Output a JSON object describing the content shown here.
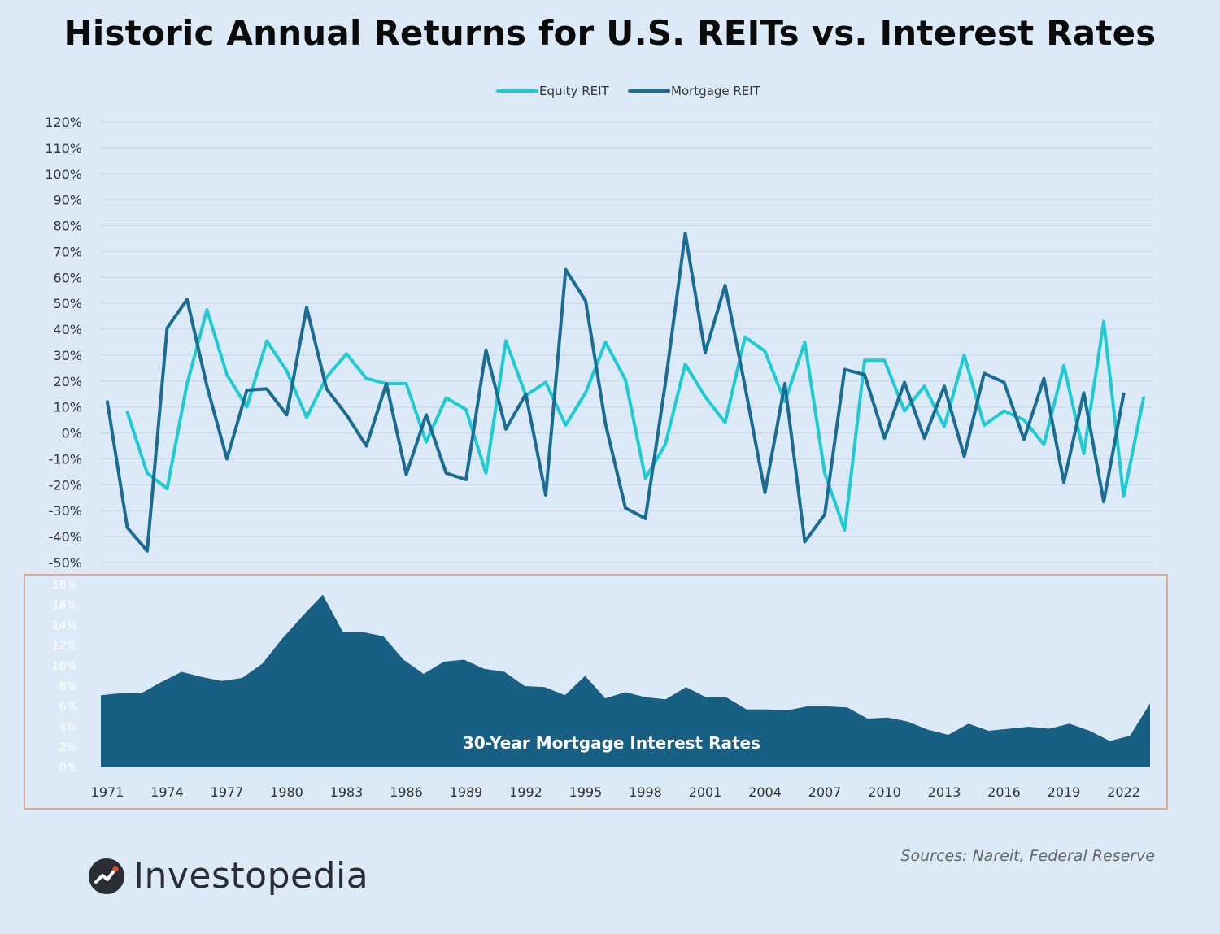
{
  "title": "Historic Annual Returns for U.S. REITs vs. Interest Rates",
  "source_note": "Sources: Nareit, Federal Reserve",
  "brand": {
    "name": "Investopedia",
    "icon": "investopedia-logo-icon"
  },
  "colors": {
    "equity": "#1ecbd3",
    "mortgage": "#1b6c93",
    "area": "#176084",
    "grid": "#c6d5e5",
    "box": "#e07c60"
  },
  "chart_data": [
    {
      "type": "line",
      "title": "",
      "xlabel": "",
      "ylabel": "",
      "ylim": [
        -50,
        120
      ],
      "y_ticks": [
        "120%",
        "110%",
        "100%",
        "90%",
        "80%",
        "70%",
        "60%",
        "50%",
        "40%",
        "30%",
        "20%",
        "10%",
        "0%",
        "-10%",
        "-20%",
        "-30%",
        "-40%",
        "-50%"
      ],
      "grid": true,
      "legend_position": "top-center",
      "series": [
        {
          "name": "Equity REIT",
          "x": [
            1972,
            1973,
            1974,
            1975,
            1976,
            1977,
            1978,
            1979,
            1980,
            1981,
            1982,
            1983,
            1984,
            1985,
            1986,
            1987,
            1988,
            1989,
            1990,
            1991,
            1992,
            1993,
            1994,
            1995,
            1996,
            1997,
            1998,
            1999,
            2000,
            2001,
            2002,
            2003,
            2004,
            2005,
            2006,
            2007,
            2008,
            2009,
            2010,
            2011,
            2012,
            2013,
            2014,
            2015,
            2016,
            2017,
            2018,
            2019,
            2020,
            2021,
            2022,
            2023
          ],
          "values": [
            8,
            -15.5,
            -21.5,
            19,
            47.5,
            22.5,
            10,
            35.5,
            24,
            6,
            21.5,
            30.5,
            21,
            19,
            19,
            -3.5,
            13.5,
            9,
            -15.5,
            35.5,
            14.5,
            19.5,
            3,
            15.5,
            35,
            20.5,
            -17.5,
            -4.5,
            26.5,
            14,
            4,
            37,
            31.5,
            12,
            35,
            -15.5,
            -37.5,
            28,
            28,
            8.5,
            18,
            2.5,
            30,
            3,
            8.5,
            5,
            -4.5,
            26,
            -8,
            43,
            -24.5,
            13.5
          ]
        },
        {
          "name": "Mortgage REIT",
          "x": [
            1971,
            1972,
            1973,
            1974,
            1975,
            1976,
            1977,
            1978,
            1979,
            1980,
            1981,
            1982,
            1983,
            1984,
            1985,
            1986,
            1987,
            1988,
            1989,
            1990,
            1991,
            1992,
            1993,
            1994,
            1995,
            1996,
            1997,
            1998,
            1999,
            2000,
            2001,
            2002,
            2003,
            2004,
            2005,
            2006,
            2007,
            2008,
            2009,
            2010,
            2011,
            2012,
            2013,
            2014,
            2015,
            2016,
            2017,
            2018,
            2019,
            2020,
            2021,
            2022
          ],
          "values": [
            12,
            -36.5,
            -45.5,
            40.5,
            51.5,
            18,
            -10,
            16.5,
            17,
            7,
            48.5,
            17,
            7,
            -5,
            19,
            -16,
            7,
            -15.5,
            -18,
            32,
            1.5,
            15,
            -24,
            63,
            51,
            3.5,
            -29,
            -33,
            19,
            77,
            31,
            57,
            18,
            -23,
            19,
            -42,
            -31.5,
            24.5,
            22.5,
            -2,
            19.5,
            -2,
            18,
            -9,
            23,
            19.5,
            -2.5,
            21,
            -19,
            15.5,
            -26.5,
            15
          ]
        }
      ]
    },
    {
      "type": "area",
      "title": "30-Year Mortgage Interest Rates",
      "xlabel": "",
      "ylabel": "",
      "ylim": [
        0,
        18
      ],
      "y_ticks": [
        "18%",
        "16%",
        "14%",
        "12%",
        "10%",
        "8%",
        "6%",
        "4%",
        "2%",
        "0%"
      ],
      "x_ticks": [
        "1971",
        "1974",
        "1977",
        "1980",
        "1983",
        "1986",
        "1989",
        "1992",
        "1995",
        "1998",
        "2001",
        "2004",
        "2007",
        "2010",
        "2013",
        "2016",
        "2019",
        "2022"
      ],
      "grid": false,
      "series": [
        {
          "name": "",
          "x": [
            1971,
            1972,
            1973,
            1974,
            1975,
            1976,
            1977,
            1978,
            1979,
            1980,
            1981,
            1982,
            1983,
            1984,
            1985,
            1986,
            1987,
            1988,
            1989,
            1990,
            1991,
            1992,
            1993,
            1994,
            1995,
            1996,
            1997,
            1998,
            1999,
            2000,
            2001,
            2002,
            2003,
            2004,
            2005,
            2006,
            2007,
            2008,
            2009,
            2010,
            2011,
            2012,
            2013,
            2014,
            2015,
            2016,
            2017,
            2018,
            2019,
            2020,
            2021,
            2022,
            2023
          ],
          "values": [
            7.1,
            7.3,
            7.3,
            8.4,
            9.4,
            8.9,
            8.5,
            8.8,
            10.2,
            12.7,
            14.9,
            17,
            13.3,
            13.3,
            12.9,
            10.6,
            9.2,
            10.4,
            10.6,
            9.7,
            9.4,
            8.0,
            7.9,
            7.1,
            9.0,
            6.8,
            7.4,
            6.9,
            6.7,
            7.9,
            6.9,
            6.9,
            5.7,
            5.7,
            5.6,
            6.0,
            6.0,
            5.9,
            4.8,
            4.9,
            4.5,
            3.7,
            3.2,
            4.3,
            3.6,
            3.8,
            4.0,
            3.8,
            4.3,
            3.6,
            2.6,
            3.1,
            6.3
          ]
        }
      ]
    }
  ]
}
